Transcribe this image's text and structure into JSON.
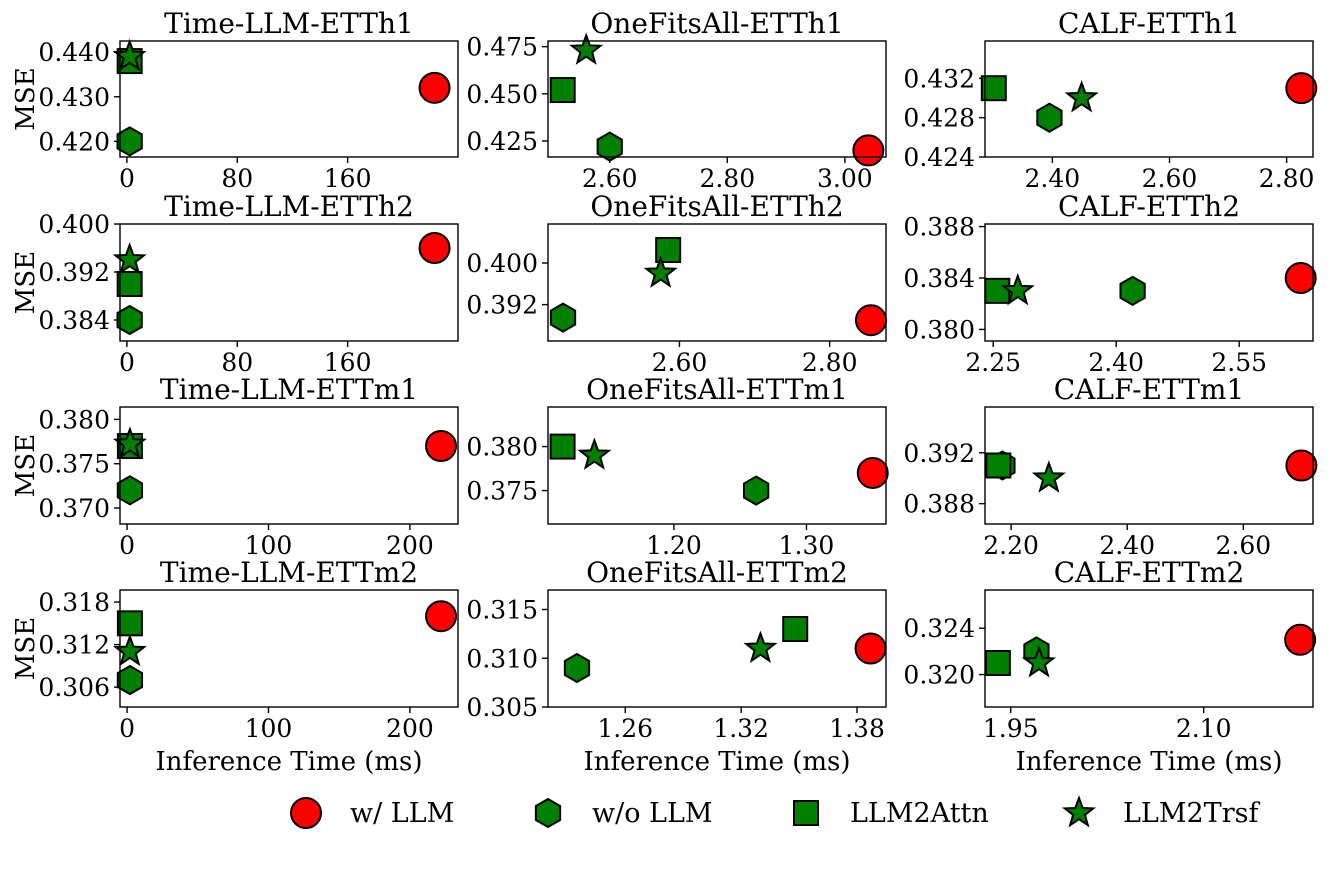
{
  "colors": {
    "llm": "#ff0000",
    "ablation": "#008000",
    "edge": "#000000"
  },
  "legend": [
    {
      "key": "with_llm",
      "label": "w/ LLM",
      "marker": "circle"
    },
    {
      "key": "without_llm",
      "label": "w/o LLM",
      "marker": "hexagon"
    },
    {
      "key": "llm2attn",
      "label": "LLM2Attn",
      "marker": "square"
    },
    {
      "key": "llm2trsf",
      "label": "LLM2Trsf",
      "marker": "star"
    }
  ],
  "chart_data": [
    {
      "type": "scatter",
      "title": "Time-LLM-ETTh1",
      "ylabel": "MSE",
      "xlabel": "",
      "xlim": [
        -5,
        240
      ],
      "ylim": [
        0.4165,
        0.4425
      ],
      "xticks": [
        0,
        80,
        160
      ],
      "xtick_labels": [
        "0",
        "80",
        "160"
      ],
      "yticks": [
        0.42,
        0.43,
        0.44
      ],
      "ytick_labels": [
        "0.420",
        "0.430",
        "0.440"
      ],
      "points": {
        "with_llm": [
          223,
          0.432
        ],
        "without_llm": [
          2,
          0.42
        ],
        "llm2attn": [
          2,
          0.438
        ],
        "llm2trsf": [
          2,
          0.439
        ]
      }
    },
    {
      "type": "scatter",
      "title": "OneFitsAll-ETTh1",
      "ylabel": "",
      "xlabel": "",
      "xlim": [
        2.495,
        3.07
      ],
      "ylim": [
        0.4165,
        0.478
      ],
      "xticks": [
        2.6,
        2.8,
        3.0
      ],
      "xtick_labels": [
        "2.60",
        "2.80",
        "3.00"
      ],
      "yticks": [
        0.425,
        0.45,
        0.475
      ],
      "ytick_labels": [
        "0.425",
        "0.450",
        "0.475"
      ],
      "points": {
        "with_llm": [
          3.04,
          0.42
        ],
        "without_llm": [
          2.6,
          0.422
        ],
        "llm2attn": [
          2.52,
          0.452
        ],
        "llm2trsf": [
          2.56,
          0.473
        ]
      }
    },
    {
      "type": "scatter",
      "title": "CALF-ETTh1",
      "ylabel": "",
      "xlabel": "",
      "xlim": [
        2.285,
        2.845
      ],
      "ylim": [
        0.424,
        0.4358
      ],
      "xticks": [
        2.4,
        2.6,
        2.8
      ],
      "xtick_labels": [
        "2.40",
        "2.60",
        "2.80"
      ],
      "yticks": [
        0.424,
        0.428,
        0.432
      ],
      "ytick_labels": [
        "0.424",
        "0.428",
        "0.432"
      ],
      "points": {
        "with_llm": [
          2.825,
          0.431
        ],
        "without_llm": [
          2.395,
          0.428
        ],
        "llm2attn": [
          2.3,
          0.431
        ],
        "llm2trsf": [
          2.45,
          0.43
        ]
      }
    },
    {
      "type": "scatter",
      "title": "Time-LLM-ETTh2",
      "ylabel": "MSE",
      "xlabel": "",
      "xlim": [
        -5,
        240
      ],
      "ylim": [
        0.3805,
        0.4
      ],
      "xticks": [
        0,
        80,
        160
      ],
      "xtick_labels": [
        "0",
        "80",
        "160"
      ],
      "yticks": [
        0.384,
        0.392,
        0.4
      ],
      "ytick_labels": [
        "0.384",
        "0.392",
        "0.400"
      ],
      "points": {
        "with_llm": [
          223,
          0.396
        ],
        "without_llm": [
          2,
          0.384
        ],
        "llm2attn": [
          2,
          0.39
        ],
        "llm2trsf": [
          2,
          0.394
        ]
      }
    },
    {
      "type": "scatter",
      "title": "OneFitsAll-ETTh2",
      "ylabel": "",
      "xlabel": "",
      "xlim": [
        2.425,
        2.875
      ],
      "ylim": [
        0.385,
        0.4075
      ],
      "xticks": [
        2.6,
        2.8
      ],
      "xtick_labels": [
        "2.60",
        "2.80"
      ],
      "yticks": [
        0.392,
        0.4
      ],
      "ytick_labels": [
        "0.392",
        "0.400"
      ],
      "points": {
        "with_llm": [
          2.855,
          0.389
        ],
        "without_llm": [
          2.445,
          0.3895
        ],
        "llm2attn": [
          2.585,
          0.4025
        ],
        "llm2trsf": [
          2.575,
          0.398
        ]
      }
    },
    {
      "type": "scatter",
      "title": "CALF-ETTh2",
      "ylabel": "",
      "xlabel": "",
      "xlim": [
        2.24,
        2.64
      ],
      "ylim": [
        0.3791,
        0.3882
      ],
      "xticks": [
        2.25,
        2.4,
        2.55
      ],
      "xtick_labels": [
        "2.25",
        "2.40",
        "2.55"
      ],
      "yticks": [
        0.38,
        0.384,
        0.388
      ],
      "ytick_labels": [
        "0.380",
        "0.384",
        "0.388"
      ],
      "points": {
        "with_llm": [
          2.625,
          0.384
        ],
        "without_llm": [
          2.42,
          0.383
        ],
        "llm2attn": [
          2.255,
          0.383
        ],
        "llm2trsf": [
          2.28,
          0.383
        ]
      }
    },
    {
      "type": "scatter",
      "title": "Time-LLM-ETTm1",
      "ylabel": "MSE",
      "xlabel": "",
      "xlim": [
        -5,
        234
      ],
      "ylim": [
        0.3682,
        0.3814
      ],
      "xticks": [
        0,
        100,
        200
      ],
      "xtick_labels": [
        "0",
        "100",
        "200"
      ],
      "yticks": [
        0.37,
        0.375,
        0.38
      ],
      "ytick_labels": [
        "0.370",
        "0.375",
        "0.380"
      ],
      "points": {
        "with_llm": [
          222,
          0.377
        ],
        "without_llm": [
          2,
          0.372
        ],
        "llm2attn": [
          2,
          0.377
        ],
        "llm2trsf": [
          2,
          0.3772
        ]
      }
    },
    {
      "type": "scatter",
      "title": "OneFitsAll-ETTm1",
      "ylabel": "",
      "xlabel": "",
      "xlim": [
        1.105,
        1.36
      ],
      "ylim": [
        0.3712,
        0.3845
      ],
      "xticks": [
        1.2,
        1.3
      ],
      "xtick_labels": [
        "1.20",
        "1.30"
      ],
      "yticks": [
        0.375,
        0.38
      ],
      "ytick_labels": [
        "0.375",
        "0.380"
      ],
      "points": {
        "with_llm": [
          1.35,
          0.377
        ],
        "without_llm": [
          1.262,
          0.375
        ],
        "llm2attn": [
          1.116,
          0.38
        ],
        "llm2trsf": [
          1.14,
          0.379
        ]
      }
    },
    {
      "type": "scatter",
      "title": "CALF-ETTm1",
      "ylabel": "",
      "xlabel": "",
      "xlim": [
        2.155,
        2.72
      ],
      "ylim": [
        0.3864,
        0.3956
      ],
      "xticks": [
        2.2,
        2.4,
        2.6
      ],
      "xtick_labels": [
        "2.20",
        "2.40",
        "2.60"
      ],
      "yticks": [
        0.388,
        0.392
      ],
      "ytick_labels": [
        "0.388",
        "0.392"
      ],
      "points": {
        "with_llm": [
          2.7,
          0.391
        ],
        "without_llm": [
          2.185,
          0.391
        ],
        "llm2attn": [
          2.178,
          0.391
        ],
        "llm2trsf": [
          2.265,
          0.39
        ]
      }
    },
    {
      "type": "scatter",
      "title": "Time-LLM-ETTm2",
      "ylabel": "MSE",
      "xlabel": "Inference Time (ms)",
      "xlim": [
        -5,
        234
      ],
      "ylim": [
        0.3032,
        0.3197
      ],
      "xticks": [
        0,
        100,
        200
      ],
      "xtick_labels": [
        "0",
        "100",
        "200"
      ],
      "yticks": [
        0.306,
        0.312,
        0.318
      ],
      "ytick_labels": [
        "0.306",
        "0.312",
        "0.318"
      ],
      "points": {
        "with_llm": [
          222,
          0.316
        ],
        "without_llm": [
          2,
          0.307
        ],
        "llm2attn": [
          2,
          0.315
        ],
        "llm2trsf": [
          2,
          0.311
        ]
      }
    },
    {
      "type": "scatter",
      "title": "OneFitsAll-ETTm2",
      "ylabel": "",
      "xlabel": "Inference Time (ms)",
      "xlim": [
        1.22,
        1.395
      ],
      "ylim": [
        0.305,
        0.317
      ],
      "xticks": [
        1.26,
        1.32,
        1.38
      ],
      "xtick_labels": [
        "1.26",
        "1.32",
        "1.38"
      ],
      "yticks": [
        0.305,
        0.31,
        0.315
      ],
      "ytick_labels": [
        "0.305",
        "0.310",
        "0.315"
      ],
      "points": {
        "with_llm": [
          1.387,
          0.311
        ],
        "without_llm": [
          1.235,
          0.309
        ],
        "llm2attn": [
          1.348,
          0.313
        ],
        "llm2trsf": [
          1.33,
          0.311
        ]
      }
    },
    {
      "type": "scatter",
      "title": "CALF-ETTm2",
      "ylabel": "",
      "xlabel": "Inference Time (ms)",
      "xlim": [
        1.93,
        2.185
      ],
      "ylim": [
        0.3172,
        0.3273
      ],
      "xticks": [
        1.95,
        2.1
      ],
      "xtick_labels": [
        "1.95",
        "2.10"
      ],
      "yticks": [
        0.32,
        0.324
      ],
      "ytick_labels": [
        "0.320",
        "0.324"
      ],
      "points": {
        "with_llm": [
          2.175,
          0.323
        ],
        "without_llm": [
          1.97,
          0.322
        ],
        "llm2attn": [
          1.94,
          0.321
        ],
        "llm2trsf": [
          1.972,
          0.321
        ]
      }
    }
  ]
}
